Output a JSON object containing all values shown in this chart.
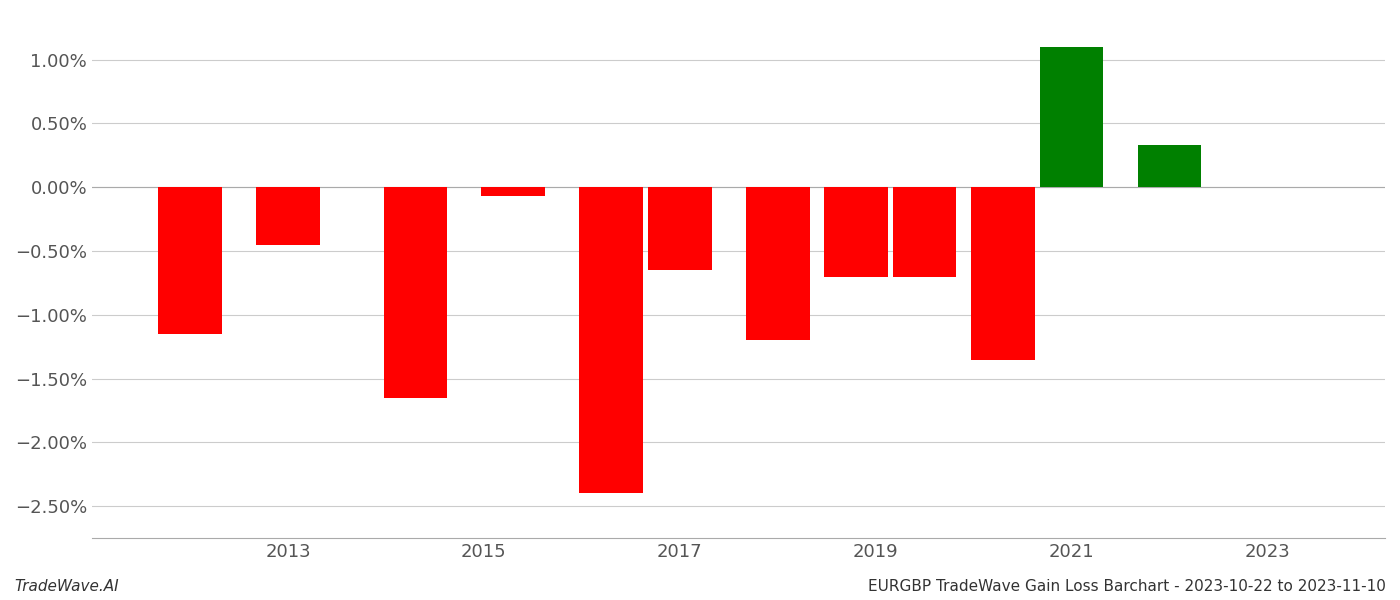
{
  "years": [
    2012,
    2013,
    2014.3,
    2015.3,
    2016.3,
    2017,
    2018,
    2018.8,
    2019.5,
    2020.3,
    2021,
    2022
  ],
  "values": [
    -1.15,
    -0.45,
    -1.65,
    -0.07,
    -2.4,
    -0.65,
    -1.2,
    -0.7,
    -0.7,
    -1.35,
    1.1,
    0.33
  ],
  "bar_width": 0.65,
  "color_positive": "#008000",
  "color_negative": "#ff0000",
  "ylim": [
    -2.75,
    1.35
  ],
  "yticks": [
    -2.5,
    -2.0,
    -1.5,
    -1.0,
    -0.5,
    0.0,
    0.5,
    1.0
  ],
  "ytick_labels": [
    "−2.50%",
    "−2.00%",
    "−1.50%",
    "−1.00%",
    "−0.50%",
    "0.00%",
    "0.50%",
    "1.00%"
  ],
  "xticks": [
    2013,
    2015,
    2017,
    2019,
    2021,
    2023
  ],
  "xlim": [
    2011.0,
    2024.2
  ],
  "background_color": "#ffffff",
  "grid_color": "#cccccc",
  "tick_label_color": "#555555",
  "footer_left": "TradeWave.AI",
  "footer_right": "EURGBP TradeWave Gain Loss Barchart - 2023-10-22 to 2023-11-10",
  "footer_fontsize": 11,
  "tick_fontsize": 13
}
